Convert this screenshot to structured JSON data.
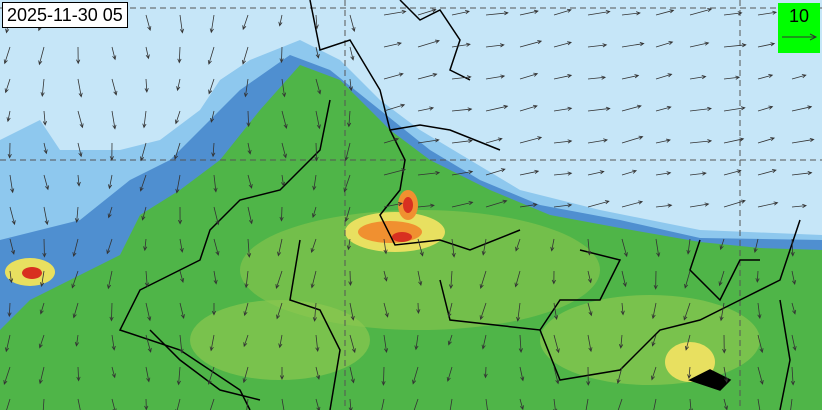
{
  "map": {
    "timestamp": "2025-11-30 05",
    "wind_legend": {
      "value": "10",
      "background": "#00ff00"
    },
    "colors": {
      "background": "#c6e6f8",
      "light_blue": "#8ec8ee",
      "mid_blue": "#4f8fd0",
      "green": "#4fb548",
      "light_green": "#8cc850",
      "yellow": "#e8e060",
      "orange": "#f09030",
      "red": "#d83020",
      "boundary": "#000000"
    }
  }
}
